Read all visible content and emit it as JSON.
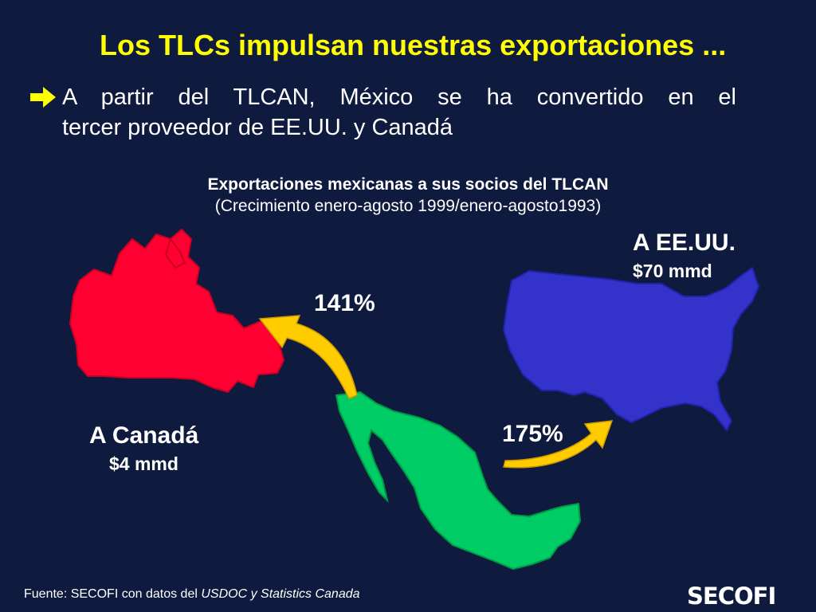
{
  "slide": {
    "title": "Los TLCs impulsan nuestras exportaciones ...",
    "bullet": {
      "icon": "right-arrow-icon",
      "line1": "A partir del TLCAN, México se ha convertido en el",
      "line2": "tercer proveedor de EE.UU. y Canadá"
    }
  },
  "chart": {
    "title": "Exportaciones mexicanas a sus socios del TLCAN",
    "subtitle": "(Crecimiento enero-agosto 1999/enero-agosto1993)",
    "flows": [
      {
        "label": "A Canadá",
        "value": "$4 mmd",
        "growth": "141%",
        "color": "#ff0033"
      },
      {
        "label": "A EE.UU.",
        "value": "$70 mmd",
        "growth": "175%",
        "color": "#3333cc"
      }
    ],
    "origin_color": "#00cc66",
    "arrow_color": "#ffcc00"
  },
  "footer": {
    "source_prefix": "Fuente: SECOFI con datos del ",
    "source_italic": "USDOC y Statistics Canada",
    "logo_text": "SECOFI"
  }
}
